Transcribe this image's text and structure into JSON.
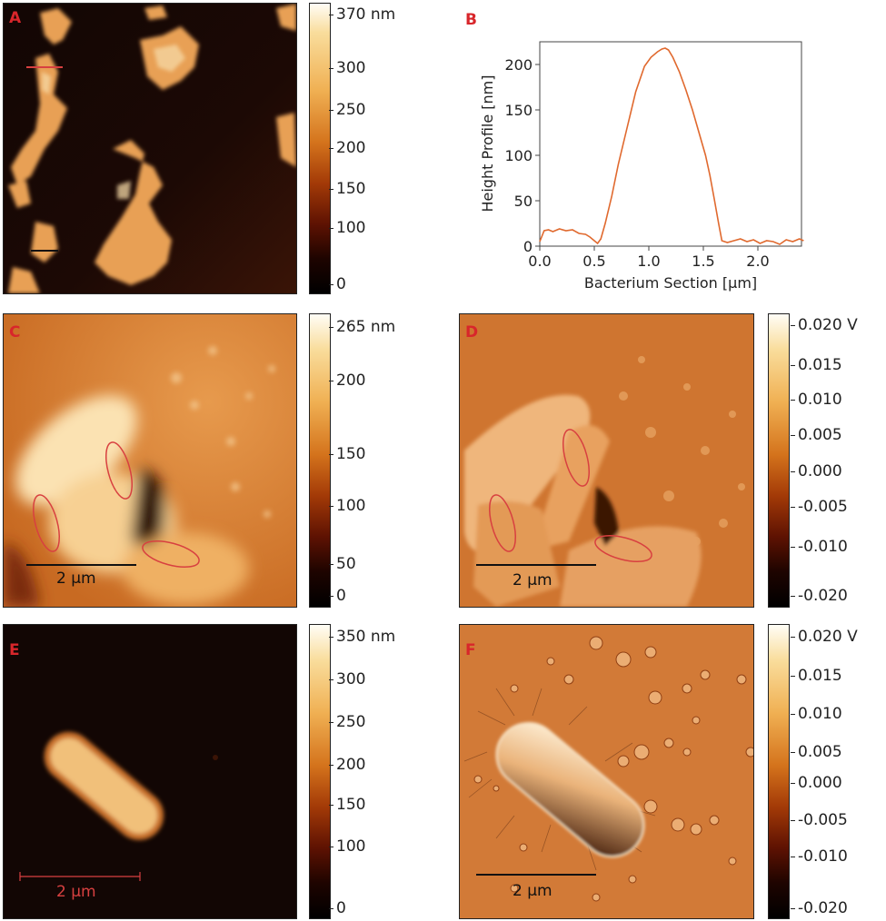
{
  "panels": {
    "A": {
      "label": "A",
      "colorbar": {
        "ticks": [
          "370 nm",
          "300",
          "250",
          "200",
          "150",
          "100",
          "0"
        ]
      }
    },
    "B": {
      "label": "B"
    },
    "C": {
      "label": "C",
      "scale": "2 μm",
      "colorbar": {
        "ticks": [
          "265 nm",
          "200",
          "150",
          "100",
          "50",
          "0"
        ]
      }
    },
    "D": {
      "label": "D",
      "scale": "2 μm",
      "colorbar": {
        "ticks": [
          "0.020 V",
          "0.015",
          "0.010",
          "0.005",
          "0.000",
          "-0.005",
          "-0.010",
          "-0.020"
        ]
      }
    },
    "E": {
      "label": "E",
      "scale": "2 μm",
      "colorbar": {
        "ticks": [
          "350 nm",
          "300",
          "250",
          "200",
          "150",
          "100",
          "0"
        ]
      }
    },
    "F": {
      "label": "F",
      "scale": "2 μm",
      "colorbar": {
        "ticks": [
          "0.020 V",
          "0.015",
          "0.010",
          "0.005",
          "0.000",
          "-0.005",
          "-0.010",
          "-0.020"
        ]
      }
    }
  },
  "colors": {
    "line": "#e0692e",
    "label": "#d8262b",
    "marker": "#d84040"
  },
  "chart_data": {
    "type": "line",
    "title": "",
    "xlabel": "Bacterium Section [μm]",
    "ylabel": "Height Profile [nm]",
    "xlim": [
      0,
      2.4
    ],
    "ylim": [
      0,
      225
    ],
    "xticks": [
      "0.0",
      "0.5",
      "1.0",
      "1.5",
      "2.0"
    ],
    "yticks": [
      "0",
      "50",
      "100",
      "150",
      "200"
    ],
    "series": [
      {
        "x": [
          0.0,
          0.04,
          0.08,
          0.12,
          0.18,
          0.24,
          0.3,
          0.36,
          0.42,
          0.46,
          0.5,
          0.53,
          0.56,
          0.6,
          0.66,
          0.72,
          0.8,
          0.88,
          0.96,
          1.02,
          1.08,
          1.12,
          1.15,
          1.18,
          1.22,
          1.28,
          1.34,
          1.4,
          1.46,
          1.52,
          1.56,
          1.6,
          1.64,
          1.67,
          1.72,
          1.78,
          1.84,
          1.9,
          1.96,
          2.02,
          2.08,
          2.14,
          2.2,
          2.26,
          2.32,
          2.38,
          2.42
        ],
        "y": [
          5,
          17,
          18,
          16,
          19,
          17,
          18,
          14,
          13,
          10,
          6,
          3,
          8,
          25,
          55,
          90,
          130,
          170,
          198,
          208,
          214,
          217,
          218,
          216,
          208,
          192,
          172,
          150,
          125,
          100,
          78,
          52,
          25,
          6,
          4,
          6,
          8,
          5,
          7,
          3,
          6,
          5,
          2,
          7,
          5,
          8,
          6
        ]
      }
    ]
  }
}
